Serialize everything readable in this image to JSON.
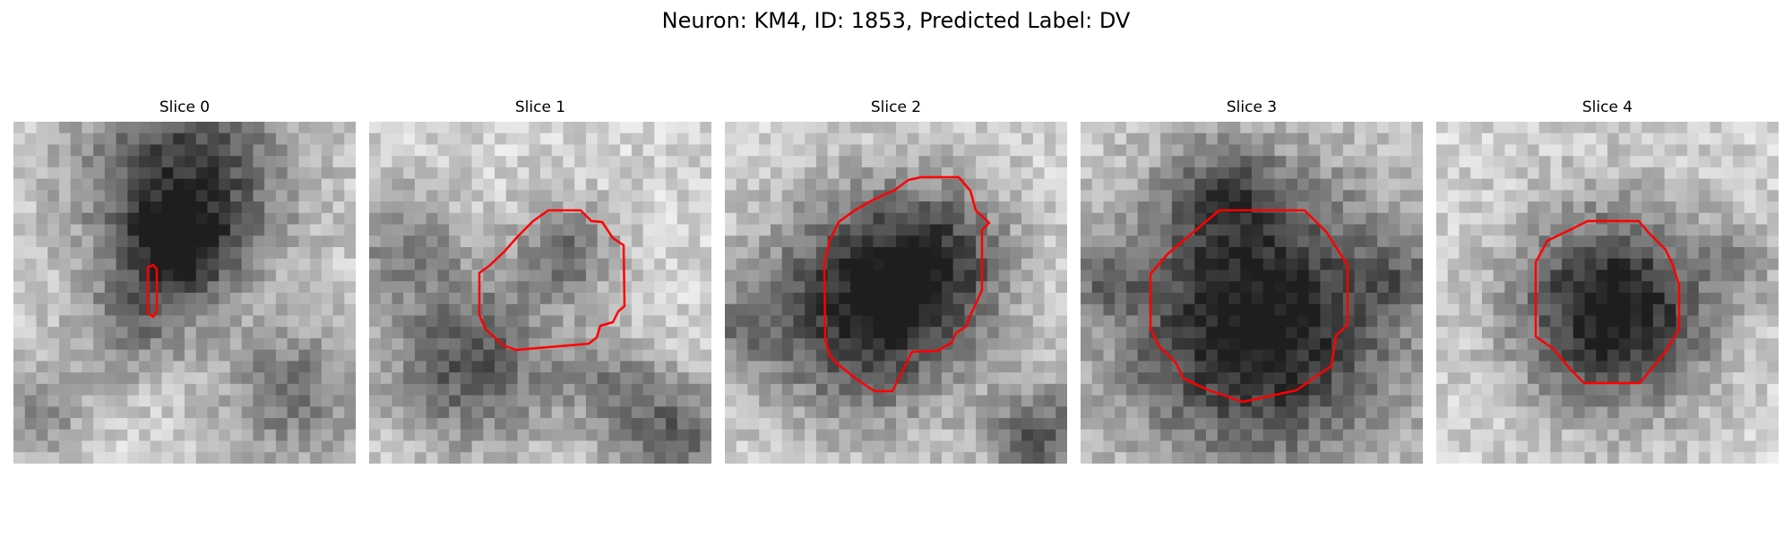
{
  "figure": {
    "title": "Neuron: KM4, ID: 1853, Predicted Label: DV"
  },
  "panels": [
    {
      "title": "Slice 0"
    },
    {
      "title": "Slice 1"
    },
    {
      "title": "Slice 2"
    },
    {
      "title": "Slice 3"
    },
    {
      "title": "Slice 4"
    }
  ],
  "colors": {
    "contour": "#ff0000",
    "colormap": "gray_r"
  }
}
